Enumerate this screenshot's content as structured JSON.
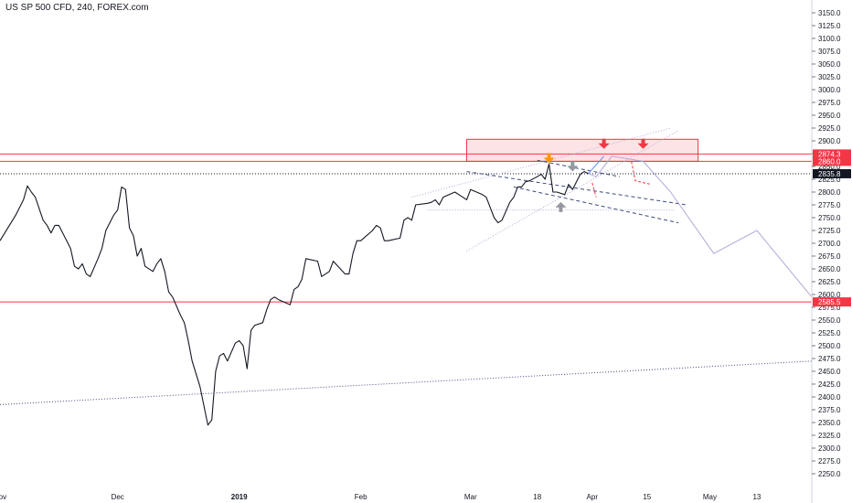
{
  "header": {
    "title": "US SP 500 CFD, 240, FOREX.com"
  },
  "colors": {
    "price_line": "#131722",
    "level_red": "#f23645",
    "zone_fill": "rgba(242,54,69,0.14)",
    "orange": "#ff9800",
    "gray": "#9598a1",
    "purple": "#b0a8d8",
    "navy": "#3d4a7a",
    "tag_black": "#131722",
    "tag_red": "#f23645",
    "axis_line": "#d1d4dc"
  },
  "chart_data": {
    "type": "line",
    "title": "US SP 500 CFD, 240, FOREX.com",
    "symbol": "US SP 500 CFD",
    "interval": "240",
    "source": "FOREX.com",
    "ylim": [
      2225,
      3175
    ],
    "y_ticks": [
      2250,
      2275,
      2300,
      2325,
      2350,
      2375,
      2400,
      2425,
      2450,
      2475,
      2500,
      2525,
      2550,
      2575,
      2600,
      2625,
      2650,
      2675,
      2700,
      2725,
      2750,
      2775,
      2800,
      2825,
      2850,
      2875,
      2900,
      2925,
      2950,
      2975,
      3000,
      3025,
      3050,
      3075,
      3100,
      3125,
      3150
    ],
    "y_tick_labels": [
      "2250.0",
      "2275.0",
      "2300.0",
      "2325.0",
      "2350.0",
      "2375.0",
      "2400.0",
      "2425.0",
      "2450.0",
      "2475.0",
      "2500.0",
      "2525.0",
      "2550.0",
      "2575.0",
      "2600.0",
      "2625.0",
      "2650.0",
      "2675.0",
      "2700.0",
      "2725.0",
      "2750.0",
      "2775.0",
      "2800.0",
      "2825.0",
      "2850.0",
      "2875.0",
      "2900.0",
      "2925.0",
      "2950.0",
      "2975.0",
      "3000.0",
      "3025.0",
      "3050.0",
      "3075.0",
      "3100.0",
      "3125.0",
      "3150.0"
    ],
    "x_range": [
      "2018-11-01",
      "2019-05-27"
    ],
    "x_ticks": [
      {
        "date": "2018-11-01",
        "label": "Nov",
        "bold": false
      },
      {
        "date": "2018-12-01",
        "label": "Dec",
        "bold": false
      },
      {
        "date": "2019-01-01",
        "label": "2019",
        "bold": true
      },
      {
        "date": "2019-02-01",
        "label": "Feb",
        "bold": false
      },
      {
        "date": "2019-03-01",
        "label": "Mar",
        "bold": false
      },
      {
        "date": "2019-03-18",
        "label": "18",
        "bold": false
      },
      {
        "date": "2019-04-01",
        "label": "Apr",
        "bold": false
      },
      {
        "date": "2019-04-15",
        "label": "15",
        "bold": false
      },
      {
        "date": "2019-05-01",
        "label": "May",
        "bold": false
      },
      {
        "date": "2019-05-13",
        "label": "13",
        "bold": false
      }
    ],
    "series": [
      {
        "points": [
          [
            "2018-11-01",
            2705
          ],
          [
            "2018-11-03",
            2730
          ],
          [
            "2018-11-05",
            2755
          ],
          [
            "2018-11-07",
            2785
          ],
          [
            "2018-11-08",
            2812
          ],
          [
            "2018-11-09",
            2800
          ],
          [
            "2018-11-10",
            2790
          ],
          [
            "2018-11-12",
            2745
          ],
          [
            "2018-11-13",
            2735
          ],
          [
            "2018-11-14",
            2720
          ],
          [
            "2018-11-15",
            2735
          ],
          [
            "2018-11-16",
            2735
          ],
          [
            "2018-11-19",
            2690
          ],
          [
            "2018-11-20",
            2655
          ],
          [
            "2018-11-21",
            2650
          ],
          [
            "2018-11-22",
            2660
          ],
          [
            "2018-11-23",
            2640
          ],
          [
            "2018-11-24",
            2635
          ],
          [
            "2018-11-26",
            2670
          ],
          [
            "2018-11-27",
            2690
          ],
          [
            "2018-11-28",
            2725
          ],
          [
            "2018-11-29",
            2740
          ],
          [
            "2018-11-30",
            2755
          ],
          [
            "2018-12-01",
            2765
          ],
          [
            "2018-12-02",
            2810
          ],
          [
            "2018-12-03",
            2805
          ],
          [
            "2018-12-04",
            2730
          ],
          [
            "2018-12-05",
            2715
          ],
          [
            "2018-12-06",
            2675
          ],
          [
            "2018-12-07",
            2690
          ],
          [
            "2018-12-08",
            2655
          ],
          [
            "2018-12-10",
            2645
          ],
          [
            "2018-12-11",
            2660
          ],
          [
            "2018-12-12",
            2670
          ],
          [
            "2018-12-13",
            2645
          ],
          [
            "2018-12-14",
            2605
          ],
          [
            "2018-12-15",
            2595
          ],
          [
            "2018-12-17",
            2560
          ],
          [
            "2018-12-18",
            2545
          ],
          [
            "2018-12-19",
            2510
          ],
          [
            "2018-12-20",
            2470
          ],
          [
            "2018-12-21",
            2445
          ],
          [
            "2018-12-22",
            2420
          ],
          [
            "2018-12-24",
            2345
          ],
          [
            "2018-12-25",
            2355
          ],
          [
            "2018-12-26",
            2450
          ],
          [
            "2018-12-27",
            2480
          ],
          [
            "2018-12-28",
            2485
          ],
          [
            "2018-12-29",
            2470
          ],
          [
            "2018-12-31",
            2505
          ],
          [
            "2019-01-01",
            2510
          ],
          [
            "2019-01-02",
            2500
          ],
          [
            "2019-01-03",
            2455
          ],
          [
            "2019-01-04",
            2530
          ],
          [
            "2019-01-05",
            2540
          ],
          [
            "2019-01-07",
            2545
          ],
          [
            "2019-01-08",
            2570
          ],
          [
            "2019-01-09",
            2590
          ],
          [
            "2019-01-10",
            2595
          ],
          [
            "2019-01-11",
            2590
          ],
          [
            "2019-01-14",
            2580
          ],
          [
            "2019-01-15",
            2610
          ],
          [
            "2019-01-16",
            2615
          ],
          [
            "2019-01-17",
            2630
          ],
          [
            "2019-01-18",
            2670
          ],
          [
            "2019-01-21",
            2665
          ],
          [
            "2019-01-22",
            2635
          ],
          [
            "2019-01-23",
            2640
          ],
          [
            "2019-01-24",
            2645
          ],
          [
            "2019-01-25",
            2665
          ],
          [
            "2019-01-28",
            2640
          ],
          [
            "2019-01-29",
            2640
          ],
          [
            "2019-01-30",
            2680
          ],
          [
            "2019-01-31",
            2705
          ],
          [
            "2019-02-01",
            2705
          ],
          [
            "2019-02-04",
            2725
          ],
          [
            "2019-02-05",
            2735
          ],
          [
            "2019-02-06",
            2730
          ],
          [
            "2019-02-07",
            2705
          ],
          [
            "2019-02-08",
            2705
          ],
          [
            "2019-02-11",
            2710
          ],
          [
            "2019-02-12",
            2745
          ],
          [
            "2019-02-13",
            2750
          ],
          [
            "2019-02-14",
            2745
          ],
          [
            "2019-02-15",
            2775
          ],
          [
            "2019-02-18",
            2778
          ],
          [
            "2019-02-19",
            2780
          ],
          [
            "2019-02-20",
            2785
          ],
          [
            "2019-02-21",
            2775
          ],
          [
            "2019-02-22",
            2790
          ],
          [
            "2019-02-25",
            2800
          ],
          [
            "2019-02-26",
            2795
          ],
          [
            "2019-02-27",
            2790
          ],
          [
            "2019-02-28",
            2785
          ],
          [
            "2019-03-01",
            2805
          ],
          [
            "2019-03-04",
            2795
          ],
          [
            "2019-03-05",
            2790
          ],
          [
            "2019-03-06",
            2770
          ],
          [
            "2019-03-07",
            2750
          ],
          [
            "2019-03-08",
            2740
          ],
          [
            "2019-03-09",
            2745
          ],
          [
            "2019-03-11",
            2780
          ],
          [
            "2019-03-12",
            2790
          ],
          [
            "2019-03-13",
            2810
          ],
          [
            "2019-03-14",
            2810
          ],
          [
            "2019-03-15",
            2820
          ],
          [
            "2019-03-16",
            2822
          ],
          [
            "2019-03-18",
            2830
          ],
          [
            "2019-03-19",
            2835
          ],
          [
            "2019-03-20",
            2825
          ],
          [
            "2019-03-21",
            2855
          ],
          [
            "2019-03-22",
            2800
          ],
          [
            "2019-03-23",
            2800
          ],
          [
            "2019-03-25",
            2795
          ],
          [
            "2019-03-26",
            2815
          ],
          [
            "2019-03-27",
            2805
          ],
          [
            "2019-03-28",
            2820
          ],
          [
            "2019-03-29",
            2835
          ],
          [
            "2019-03-30",
            2840
          ],
          [
            "2019-03-31",
            2836
          ]
        ]
      }
    ],
    "levels": [
      {
        "price": 2874.3,
        "label": "2874.3"
      },
      {
        "price": 2860.0,
        "label": "2860.0"
      },
      {
        "price": 2585.5,
        "label": "2585.5"
      }
    ],
    "last_price": {
      "price": 2835.8,
      "label": "2835.8"
    },
    "resistance_zone": {
      "from": "2019-02-28",
      "to": "2019-04-28",
      "top": 2903,
      "bottom": 2860
    },
    "channel_lines": [
      {
        "style": "dotted",
        "color": "purple",
        "points": [
          [
            "2019-02-14",
            2790
          ],
          [
            "2019-04-21",
            2925
          ]
        ]
      },
      {
        "style": "dotted",
        "color": "purple",
        "points": [
          [
            "2019-02-28",
            2685
          ],
          [
            "2019-04-23",
            2920
          ]
        ]
      },
      {
        "style": "dotted",
        "color": "navy",
        "points": [
          [
            "2018-11-01",
            2385
          ],
          [
            "2019-05-27",
            2470
          ]
        ]
      },
      {
        "style": "dotted",
        "color": "purple",
        "points": [
          [
            "2019-02-18",
            2765
          ],
          [
            "2019-04-22",
            2765
          ]
        ]
      },
      {
        "style": "dashed",
        "color": "navy",
        "points": [
          [
            "2019-02-28",
            2840
          ],
          [
            "2019-04-25",
            2775
          ]
        ]
      },
      {
        "style": "dashed",
        "color": "navy",
        "points": [
          [
            "2019-03-12",
            2810
          ],
          [
            "2019-04-23",
            2740
          ]
        ]
      },
      {
        "style": "dashed",
        "color": "navy",
        "points": [
          [
            "2019-03-18",
            2862
          ],
          [
            "2019-04-08",
            2830
          ]
        ]
      }
    ],
    "projections": [
      {
        "color": "purple",
        "points": [
          [
            "2019-03-31",
            2836
          ],
          [
            "2019-04-02",
            2830
          ],
          [
            "2019-04-06",
            2870
          ],
          [
            "2019-04-14",
            2860
          ],
          [
            "2019-04-21",
            2800
          ],
          [
            "2019-05-02",
            2680
          ],
          [
            "2019-05-13",
            2725
          ],
          [
            "2019-05-27",
            2595
          ]
        ]
      },
      {
        "color": "blue",
        "points": [
          [
            "2019-03-31",
            2836
          ],
          [
            "2019-04-04",
            2870
          ]
        ]
      },
      {
        "color": "red",
        "style": "dashed",
        "points": [
          [
            "2019-04-01",
            2818
          ],
          [
            "2019-04-02",
            2790
          ]
        ]
      },
      {
        "color": "red",
        "style": "dashed",
        "points": [
          [
            "2019-04-11",
            2860
          ],
          [
            "2019-04-12",
            2822
          ],
          [
            "2019-04-16",
            2815
          ]
        ]
      }
    ],
    "markers": [
      {
        "type": "arrow-down",
        "color": "orange",
        "x": "2019-03-21",
        "y": 2860
      },
      {
        "type": "arrow-down",
        "color": "gray",
        "x": "2019-03-27",
        "y": 2844
      },
      {
        "type": "arrow-up",
        "color": "gray",
        "x": "2019-03-24",
        "y": 2777
      },
      {
        "type": "arrow-down",
        "color": "red",
        "x": "2019-04-04",
        "y": 2888
      },
      {
        "type": "arrow-down",
        "color": "red",
        "x": "2019-04-14",
        "y": 2888
      }
    ],
    "grid": false
  }
}
